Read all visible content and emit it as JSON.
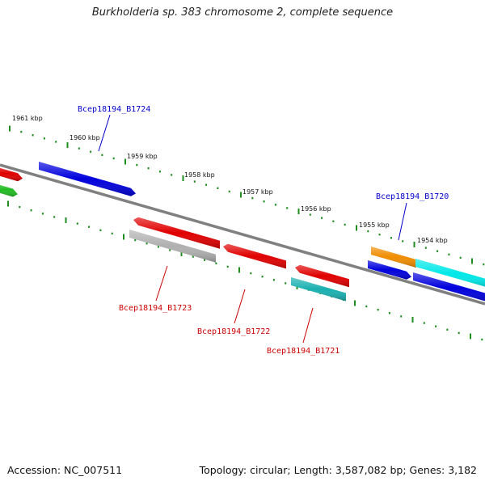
{
  "title": "Burkholderia sp. 383 chromosome 2, complete sequence",
  "footer": {
    "accession": "Accession: NC_007511",
    "summary": "Topology: circular; Length: 3,587,082 bp; Genes: 3,182"
  },
  "colors": {
    "backbone": "#808080",
    "upper_ticks": "#1e8c1e",
    "lower_ticks": "#1e8c1e",
    "label_forward": "#0000cc",
    "label_reverse": "#cc0000"
  },
  "tick_labels": [
    "1961 kbp",
    "1960 kbp",
    "1959 kbp",
    "1958 kbp",
    "1957 kbp",
    "1956 kbp",
    "1955 kbp",
    "1954 kbp"
  ],
  "genes": [
    {
      "id": "g_red_left",
      "color": "#e00000",
      "name": ""
    },
    {
      "id": "g_green_left",
      "color": "#22bb22",
      "name": ""
    },
    {
      "id": "g_blue_1724",
      "color": "#0000dd",
      "name": "Bcep18194_B1724"
    },
    {
      "id": "g_red_1723",
      "color": "#e00000",
      "name": "Bcep18194_B1723"
    },
    {
      "id": "g_gray_1723",
      "color": "#b0b0b0",
      "name": ""
    },
    {
      "id": "g_red_1722",
      "color": "#e00000",
      "name": "Bcep18194_B1722"
    },
    {
      "id": "g_red_1721",
      "color": "#e00000",
      "name": ""
    },
    {
      "id": "g_teal_1721",
      "color": "#1ab0b0",
      "name": "Bcep18194_B1721"
    },
    {
      "id": "g_orange",
      "color": "#f08c00",
      "name": ""
    },
    {
      "id": "g_blue_1720",
      "color": "#0000dd",
      "name": "Bcep18194_B1720"
    },
    {
      "id": "g_cyan_right",
      "color": "#00e8e8",
      "name": ""
    },
    {
      "id": "g_blue_right",
      "color": "#0000dd",
      "name": ""
    }
  ],
  "callouts": [
    {
      "id": "lbl_1724",
      "text": "Bcep18194_B1724",
      "strand": "forward"
    },
    {
      "id": "lbl_1720",
      "text": "Bcep18194_B1720",
      "strand": "forward"
    },
    {
      "id": "lbl_1723",
      "text": "Bcep18194_B1723",
      "strand": "reverse"
    },
    {
      "id": "lbl_1722",
      "text": "Bcep18194_B1722",
      "strand": "reverse"
    },
    {
      "id": "lbl_1721",
      "text": "Bcep18194_B1721",
      "strand": "reverse"
    }
  ]
}
